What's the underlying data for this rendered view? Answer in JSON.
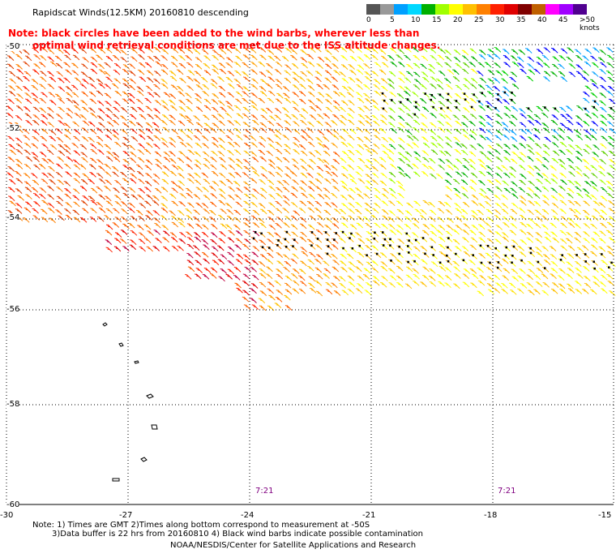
{
  "header": {
    "title": "Rapidscat Winds(12.5KM) 20160810 descending",
    "note_line1": "Note: black circles have been added to the wind barbs, wherever less than",
    "note_line2": "optimal wind retrieval conditions are met due to the ISS altitude changes."
  },
  "legend": {
    "colors": [
      "#555555",
      "#999999",
      "#00a0ff",
      "#00d8ff",
      "#00b000",
      "#a0ff00",
      "#ffff00",
      "#ffc000",
      "#ff8000",
      "#ff2000",
      "#e00000",
      "#800000",
      "#c06000",
      "#ff00ff",
      "#a000ff",
      "#500090"
    ],
    "labels": [
      "0",
      "5",
      "10",
      "15",
      "20",
      "25",
      "30",
      "35",
      "40",
      "45",
      ">50 knots"
    ]
  },
  "axes": {
    "y_labels": [
      "-50",
      "-52",
      "-54",
      "-56",
      "-58",
      "-60"
    ],
    "x_labels": [
      "-30",
      "-27",
      "-24",
      "-21",
      "-18",
      "-15"
    ]
  },
  "times": [
    "7:21",
    "7:21"
  ],
  "footer": {
    "line1": "Note: 1) Times are GMT 2)Times along bottom correspond to measurement at -50S",
    "line2": "3)Data buffer is 22 hrs from 20160810 4) Black wind barbs indicate possible contamination",
    "line3": "NOAA/NESDIS/Center for Satellite Applications and Research"
  }
}
